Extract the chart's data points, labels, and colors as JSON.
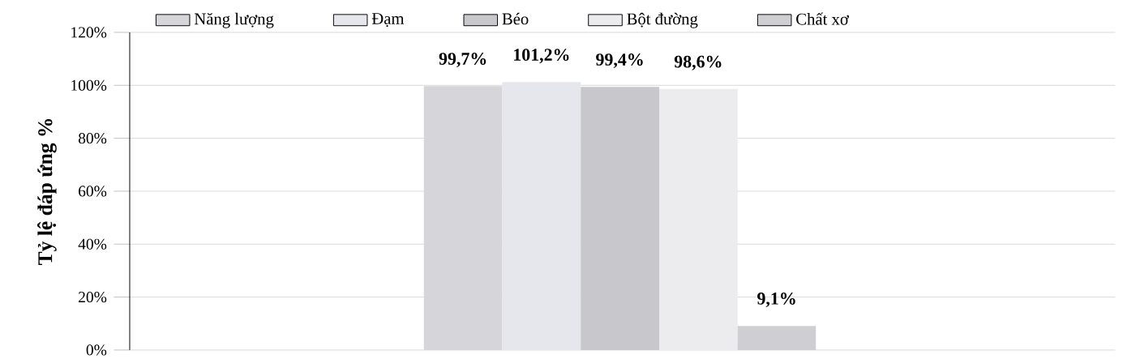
{
  "chart_data": {
    "type": "bar",
    "ylabel": "Tỷ lệ đáp ứng %",
    "categories": [
      null
    ],
    "series": [
      {
        "name": "Năng lượng",
        "color": "#d6d6da",
        "values": [
          99.7
        ],
        "value_labels": [
          "99,7%"
        ]
      },
      {
        "name": "Đạm",
        "color": "#e6e7ec",
        "values": [
          101.2
        ],
        "value_labels": [
          "101,2%"
        ]
      },
      {
        "name": "Béo",
        "color": "#c8c8cc",
        "values": [
          99.4
        ],
        "value_labels": [
          "99,4%"
        ]
      },
      {
        "name": "Bột đường",
        "color": "#ececee",
        "values": [
          98.6
        ],
        "value_labels": [
          "98,6%"
        ]
      },
      {
        "name": "Chất xơ",
        "color": "#cfcfd3",
        "values": [
          9.1
        ],
        "value_labels": [
          "9,1%"
        ]
      }
    ],
    "ylim": [
      0,
      120
    ],
    "yticks": [
      {
        "value": 0,
        "label": "0%"
      },
      {
        "value": 20,
        "label": "20%"
      },
      {
        "value": 40,
        "label": "40%"
      },
      {
        "value": 60,
        "label": "60%"
      },
      {
        "value": 80,
        "label": "80%"
      },
      {
        "value": 100,
        "label": "100%"
      },
      {
        "value": 120,
        "label": "120%"
      }
    ],
    "grid": "y",
    "legend": "top"
  }
}
